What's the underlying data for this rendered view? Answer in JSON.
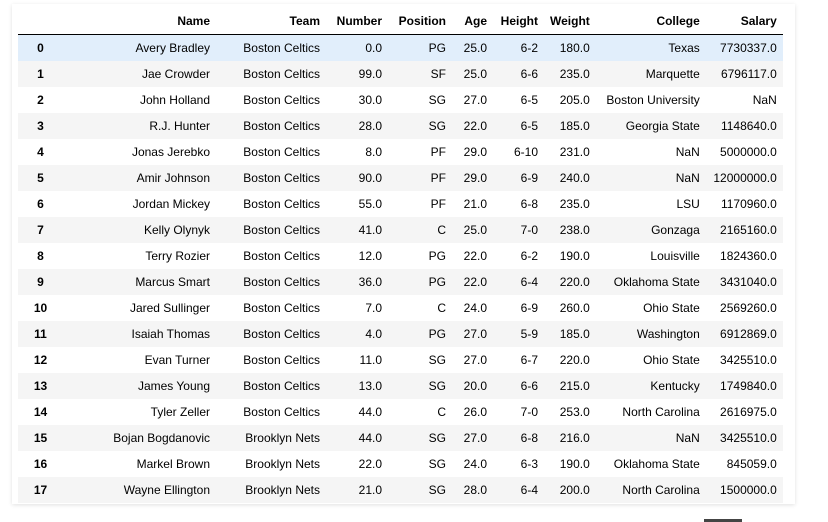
{
  "table": {
    "columns": [
      "",
      "Name",
      "Team",
      "Number",
      "Position",
      "Age",
      "Height",
      "Weight",
      "College",
      "Salary"
    ],
    "rows": [
      [
        "0",
        "Avery Bradley",
        "Boston Celtics",
        "0.0",
        "PG",
        "25.0",
        "6-2",
        "180.0",
        "Texas",
        "7730337.0"
      ],
      [
        "1",
        "Jae Crowder",
        "Boston Celtics",
        "99.0",
        "SF",
        "25.0",
        "6-6",
        "235.0",
        "Marquette",
        "6796117.0"
      ],
      [
        "2",
        "John Holland",
        "Boston Celtics",
        "30.0",
        "SG",
        "27.0",
        "6-5",
        "205.0",
        "Boston University",
        "NaN"
      ],
      [
        "3",
        "R.J. Hunter",
        "Boston Celtics",
        "28.0",
        "SG",
        "22.0",
        "6-5",
        "185.0",
        "Georgia State",
        "1148640.0"
      ],
      [
        "4",
        "Jonas Jerebko",
        "Boston Celtics",
        "8.0",
        "PF",
        "29.0",
        "6-10",
        "231.0",
        "NaN",
        "5000000.0"
      ],
      [
        "5",
        "Amir Johnson",
        "Boston Celtics",
        "90.0",
        "PF",
        "29.0",
        "6-9",
        "240.0",
        "NaN",
        "12000000.0"
      ],
      [
        "6",
        "Jordan Mickey",
        "Boston Celtics",
        "55.0",
        "PF",
        "21.0",
        "6-8",
        "235.0",
        "LSU",
        "1170960.0"
      ],
      [
        "7",
        "Kelly Olynyk",
        "Boston Celtics",
        "41.0",
        "C",
        "25.0",
        "7-0",
        "238.0",
        "Gonzaga",
        "2165160.0"
      ],
      [
        "8",
        "Terry Rozier",
        "Boston Celtics",
        "12.0",
        "PG",
        "22.0",
        "6-2",
        "190.0",
        "Louisville",
        "1824360.0"
      ],
      [
        "9",
        "Marcus Smart",
        "Boston Celtics",
        "36.0",
        "PG",
        "22.0",
        "6-4",
        "220.0",
        "Oklahoma State",
        "3431040.0"
      ],
      [
        "10",
        "Jared Sullinger",
        "Boston Celtics",
        "7.0",
        "C",
        "24.0",
        "6-9",
        "260.0",
        "Ohio State",
        "2569260.0"
      ],
      [
        "11",
        "Isaiah Thomas",
        "Boston Celtics",
        "4.0",
        "PG",
        "27.0",
        "5-9",
        "185.0",
        "Washington",
        "6912869.0"
      ],
      [
        "12",
        "Evan Turner",
        "Boston Celtics",
        "11.0",
        "SG",
        "27.0",
        "6-7",
        "220.0",
        "Ohio State",
        "3425510.0"
      ],
      [
        "13",
        "James Young",
        "Boston Celtics",
        "13.0",
        "SG",
        "20.0",
        "6-6",
        "215.0",
        "Kentucky",
        "1749840.0"
      ],
      [
        "14",
        "Tyler Zeller",
        "Boston Celtics",
        "44.0",
        "C",
        "26.0",
        "7-0",
        "253.0",
        "North Carolina",
        "2616975.0"
      ],
      [
        "15",
        "Bojan Bogdanovic",
        "Brooklyn Nets",
        "44.0",
        "SG",
        "27.0",
        "6-8",
        "216.0",
        "NaN",
        "3425510.0"
      ],
      [
        "16",
        "Markel Brown",
        "Brooklyn Nets",
        "22.0",
        "SG",
        "24.0",
        "6-3",
        "190.0",
        "Oklahoma State",
        "845059.0"
      ],
      [
        "17",
        "Wayne Ellington",
        "Brooklyn Nets",
        "21.0",
        "SG",
        "28.0",
        "6-4",
        "200.0",
        "North Carolina",
        "1500000.0"
      ]
    ],
    "hovered_row_index": 0
  },
  "colors": {
    "row_stripe": "#f5f5f5",
    "row_hover": "#e1eefb",
    "header_border": "#000000"
  }
}
